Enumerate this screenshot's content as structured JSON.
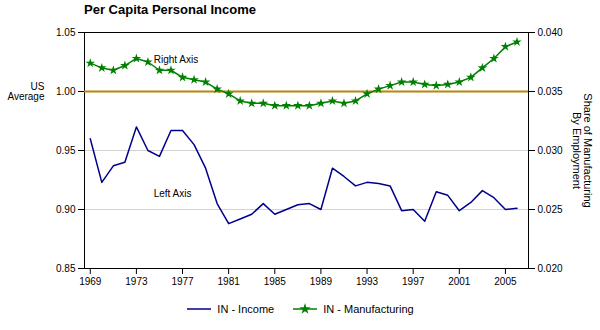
{
  "chart_data": {
    "type": "line",
    "title": "Per Capita Personal Income",
    "x": [
      1969,
      1970,
      1971,
      1972,
      1973,
      1974,
      1975,
      1976,
      1977,
      1978,
      1979,
      1980,
      1981,
      1982,
      1983,
      1984,
      1985,
      1986,
      1987,
      1988,
      1989,
      1990,
      1991,
      1992,
      1993,
      1994,
      1995,
      1996,
      1997,
      1998,
      1999,
      2000,
      2001,
      2002,
      2003,
      2004,
      2005,
      2006
    ],
    "xlim": [
      1968.5,
      2007
    ],
    "xticks": [
      1969,
      1973,
      1977,
      1981,
      1985,
      1989,
      1993,
      1997,
      2001,
      2005
    ],
    "ylim": [
      0.85,
      1.05
    ],
    "yticks": [
      0.85,
      {
        "value": 0.9,
        "label": "0.90"
      },
      0.95,
      {
        "value": 1.0,
        "label": "1.00"
      },
      1.05
    ],
    "y2lim": [
      0.02,
      0.04
    ],
    "y2ticks": [
      {
        "value": 0.02,
        "label": "0.020"
      },
      0.025,
      {
        "value": 0.03,
        "label": "0.030"
      },
      0.035,
      {
        "value": 0.04,
        "label": "0.040"
      }
    ],
    "y2label": "Share of Manufacturing\nBy Employment",
    "grid": true,
    "legend": "bottom",
    "series": [
      {
        "name": "IN - Income",
        "color": "#00008B",
        "values": [
          0.96,
          0.923,
          0.937,
          0.94,
          0.97,
          0.95,
          0.945,
          0.967,
          0.967,
          0.955,
          0.935,
          0.905,
          0.888,
          0.892,
          0.896,
          0.905,
          0.896,
          0.9,
          0.904,
          0.905,
          0.9,
          0.935,
          0.928,
          0.92,
          0.923,
          0.922,
          0.92,
          0.899,
          0.9,
          0.89,
          0.915,
          0.912,
          0.899,
          0.906,
          0.916,
          0.91,
          0.9,
          0.901
        ]
      },
      {
        "name": "IN - Manufacturing",
        "color": "#008000",
        "marker": "star",
        "axis": "y2",
        "values": [
          0.0374,
          0.037,
          0.0368,
          0.0372,
          0.0378,
          0.0375,
          0.0368,
          0.0368,
          0.0362,
          0.036,
          0.0358,
          0.0352,
          0.0348,
          0.0342,
          0.034,
          0.034,
          0.0338,
          0.0338,
          0.0338,
          0.0338,
          0.034,
          0.0342,
          0.034,
          0.0342,
          0.0348,
          0.0352,
          0.0355,
          0.0358,
          0.0358,
          0.0356,
          0.0355,
          0.0356,
          0.0358,
          0.0362,
          0.037,
          0.0378,
          0.0388,
          0.0392
        ]
      }
    ],
    "hline": {
      "y": 1.0,
      "color": "#b8860b",
      "label": "US\nAverage"
    },
    "annotations": [
      {
        "text": "Right Axis",
        "x": 1974.5,
        "y": 1.027
      },
      {
        "text": "Left Axis",
        "x": 1974.5,
        "y": 0.913
      }
    ]
  }
}
